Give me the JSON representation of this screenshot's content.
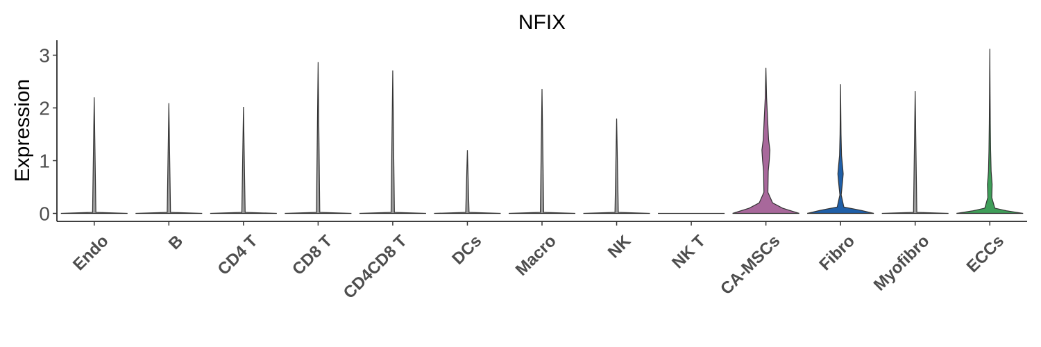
{
  "chart_data": {
    "type": "violin",
    "title": "NFIX",
    "ylabel": "Expression",
    "xlabel": "",
    "ylim": [
      -0.15,
      3.3
    ],
    "yticks": [
      0,
      1,
      2,
      3
    ],
    "grid": false,
    "legend": "none",
    "categories": [
      "Endo",
      "B",
      "CD4 T",
      "CD8 T",
      "CD4CD8 T",
      "DCs",
      "Macro",
      "NK",
      "NK T",
      "CA-MSCs",
      "Fibro",
      "Myofibro",
      "ECCs"
    ],
    "colors": [
      "#9d9d9d",
      "#9d9d9d",
      "#9d9d9d",
      "#9d9d9d",
      "#9d9d9d",
      "#9d9d9d",
      "#9d9d9d",
      "#9d9d9d",
      "#9d9d9d",
      "#a8689b",
      "#1f5fa8",
      "#9d9d9d",
      "#3f9e59"
    ],
    "max_values": [
      2.2,
      2.09,
      2.02,
      2.87,
      2.71,
      1.2,
      2.36,
      1.8,
      0.0,
      2.76,
      2.45,
      2.32,
      3.12
    ],
    "density_profiles": [
      [
        [
          0,
          1.0
        ],
        [
          0.02,
          0.05
        ],
        [
          2.2,
          0.0
        ]
      ],
      [
        [
          0,
          1.0
        ],
        [
          0.02,
          0.05
        ],
        [
          2.09,
          0.0
        ]
      ],
      [
        [
          0,
          1.0
        ],
        [
          0.02,
          0.05
        ],
        [
          2.02,
          0.0
        ]
      ],
      [
        [
          0,
          1.0
        ],
        [
          0.02,
          0.05
        ],
        [
          2.87,
          0.0
        ]
      ],
      [
        [
          0,
          1.0
        ],
        [
          0.02,
          0.05
        ],
        [
          2.71,
          0.0
        ]
      ],
      [
        [
          0,
          1.0
        ],
        [
          0.02,
          0.05
        ],
        [
          1.2,
          0.0
        ]
      ],
      [
        [
          0,
          1.0
        ],
        [
          0.02,
          0.05
        ],
        [
          2.36,
          0.0
        ]
      ],
      [
        [
          0,
          1.0
        ],
        [
          0.02,
          0.05
        ],
        [
          1.8,
          0.0
        ]
      ],
      [
        [
          0,
          1.0
        ],
        [
          0.0,
          0.0
        ]
      ],
      [
        [
          0,
          1.0
        ],
        [
          0.1,
          0.5
        ],
        [
          0.2,
          0.2
        ],
        [
          0.4,
          0.06
        ],
        [
          0.8,
          0.07
        ],
        [
          1.0,
          0.1
        ],
        [
          1.2,
          0.12
        ],
        [
          1.4,
          0.08
        ],
        [
          1.8,
          0.05
        ],
        [
          2.2,
          0.02
        ],
        [
          2.76,
          0.0
        ]
      ],
      [
        [
          0,
          1.0
        ],
        [
          0.06,
          0.6
        ],
        [
          0.12,
          0.1
        ],
        [
          0.35,
          0.02
        ],
        [
          0.6,
          0.06
        ],
        [
          0.75,
          0.08
        ],
        [
          0.9,
          0.06
        ],
        [
          1.1,
          0.03
        ],
        [
          1.5,
          0.015
        ],
        [
          2.45,
          0.0
        ]
      ],
      [
        [
          0,
          1.0
        ],
        [
          0.02,
          0.05
        ],
        [
          2.32,
          0.0
        ]
      ],
      [
        [
          0,
          1.0
        ],
        [
          0.05,
          0.5
        ],
        [
          0.1,
          0.15
        ],
        [
          0.3,
          0.06
        ],
        [
          0.55,
          0.07
        ],
        [
          0.8,
          0.04
        ],
        [
          1.2,
          0.025
        ],
        [
          1.7,
          0.015
        ],
        [
          2.3,
          0.008
        ],
        [
          3.12,
          0.0
        ]
      ]
    ]
  }
}
